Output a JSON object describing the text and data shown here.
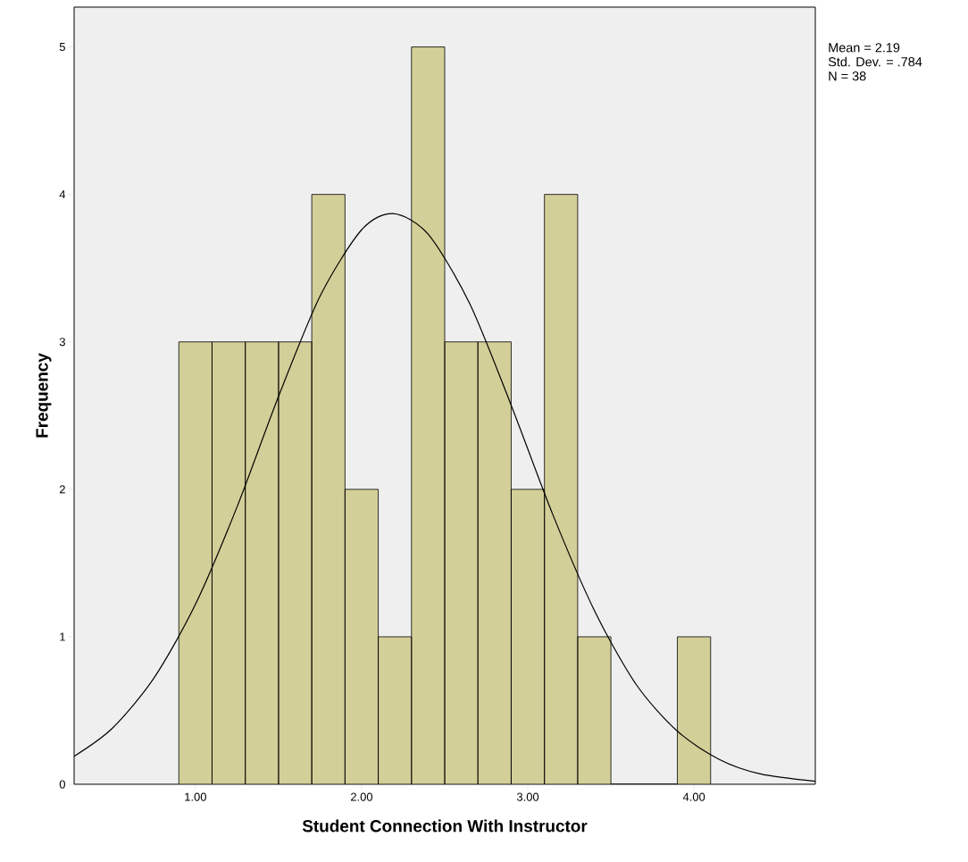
{
  "chart_data": {
    "type": "histogram",
    "xlabel": "Student Connection With Instructor",
    "ylabel": "Frequency",
    "bins": [
      0.9,
      1.1,
      1.3,
      1.5,
      1.7,
      1.9,
      2.1,
      2.3,
      2.5,
      2.7,
      2.9,
      3.1,
      3.3,
      3.5,
      3.7,
      3.9,
      4.1
    ],
    "values": [
      3,
      3,
      3,
      3,
      4,
      2,
      1,
      5,
      3,
      3,
      2,
      4,
      1,
      0,
      0,
      1
    ],
    "color": "#d3cf98",
    "series": [
      {
        "type": "line",
        "color": "#000000",
        "x": [
          0.27,
          0.5,
          0.75,
          1.0,
          1.25,
          1.5,
          1.75,
          2.0,
          2.19,
          2.4,
          2.65,
          2.9,
          3.15,
          3.4,
          3.65,
          3.9,
          4.15,
          4.4,
          4.73
        ],
        "values": [
          0.19,
          0.38,
          0.72,
          1.22,
          1.88,
          2.63,
          3.31,
          3.76,
          3.87,
          3.73,
          3.26,
          2.57,
          1.83,
          1.18,
          0.68,
          0.36,
          0.17,
          0.07,
          0.02
        ]
      }
    ],
    "xlim": [
      0.27,
      4.73
    ],
    "ylim": [
      0,
      5.27
    ],
    "xticks": [
      {
        "value": 1,
        "label": "1.00"
      },
      {
        "value": 2,
        "label": "2.00"
      },
      {
        "value": 3,
        "label": "3.00"
      },
      {
        "value": 4,
        "label": "4.00"
      }
    ],
    "yticks": [
      0,
      1,
      2,
      3,
      4,
      5
    ],
    "marker": "none",
    "grid": false,
    "annotations": [
      "Mean = 2.19",
      "Std. Dev. = .784",
      "N = 38"
    ]
  }
}
